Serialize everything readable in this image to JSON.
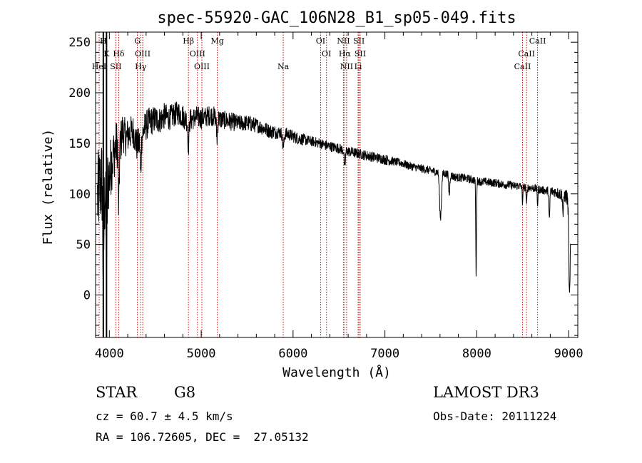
{
  "chart_data": {
    "type": "line",
    "title": "spec-55920-GAC_106N28_B1_sp05-049.fits",
    "xlabel": "Wavelength (Å)",
    "ylabel": "Flux (relative)",
    "xlim": [
      3850,
      9100
    ],
    "ylim": [
      -42,
      260
    ],
    "xticks": [
      4000,
      5000,
      6000,
      7000,
      8000,
      9000
    ],
    "yticks": [
      0,
      50,
      100,
      150,
      200,
      250
    ],
    "series": [
      {
        "name": "spectrum",
        "x": [
          3870,
          3890,
          3910,
          3930,
          3950,
          3970,
          3990,
          4020,
          4050,
          4080,
          4110,
          4140,
          4180,
          4220,
          4260,
          4300,
          4340,
          4380,
          4420,
          4460,
          4500,
          4550,
          4600,
          4650,
          4700,
          4750,
          4800,
          4850,
          4900,
          4950,
          5000,
          5050,
          5100,
          5150,
          5200,
          5250,
          5300,
          5350,
          5400,
          5450,
          5500,
          5550,
          5600,
          5650,
          5700,
          5750,
          5800,
          5850,
          5900,
          5950,
          6000,
          6050,
          6100,
          6150,
          6200,
          6250,
          6300,
          6350,
          6400,
          6450,
          6500,
          6550,
          6600,
          6650,
          6700,
          6750,
          6800,
          6850,
          6900,
          6950,
          7000,
          7050,
          7100,
          7150,
          7200,
          7250,
          7300,
          7350,
          7400,
          7450,
          7500,
          7550,
          7600,
          7650,
          7700,
          7750,
          7800,
          7850,
          7900,
          7950,
          8000,
          8050,
          8100,
          8150,
          8200,
          8250,
          8300,
          8350,
          8400,
          8450,
          8500,
          8550,
          8600,
          8650,
          8700,
          8750,
          8800,
          8850,
          8900,
          8950,
          9000,
          9020
        ],
        "y": [
          95,
          105,
          110,
          120,
          100,
          128,
          112,
          130,
          140,
          150,
          142,
          162,
          155,
          160,
          162,
          148,
          152,
          165,
          170,
          172,
          174,
          173,
          177,
          175,
          178,
          180,
          177,
          172,
          174,
          176,
          175,
          176,
          178,
          176,
          174,
          173,
          172,
          171,
          170,
          170,
          170,
          169,
          168,
          166,
          164,
          162,
          161,
          161,
          160,
          159,
          157,
          155,
          154,
          153,
          152,
          151,
          150,
          148,
          147,
          146,
          145,
          143,
          142,
          141,
          140,
          139,
          138,
          137,
          136,
          135,
          134,
          133,
          132,
          131,
          130,
          128,
          127,
          126,
          125,
          124,
          123,
          122,
          121,
          120,
          119,
          117,
          116,
          116,
          115,
          114,
          113,
          112,
          112,
          111,
          111,
          110,
          109,
          109,
          108,
          108,
          107,
          106,
          106,
          105,
          104,
          103,
          103,
          102,
          100,
          99,
          95,
          92
        ],
        "noise": [
          45,
          45,
          45,
          45,
          45,
          40,
          35,
          30,
          26,
          24,
          22,
          20,
          18,
          17,
          16,
          16,
          15,
          15,
          15,
          14,
          14,
          13,
          13,
          12,
          12,
          12,
          12,
          11,
          11,
          11,
          11,
          10,
          10,
          10,
          10,
          9,
          9,
          9,
          8,
          8,
          8,
          8,
          7,
          7,
          7,
          7,
          7,
          6,
          6,
          6,
          6,
          6,
          6,
          5,
          5,
          5,
          5,
          5,
          5,
          5,
          5,
          5,
          5,
          5,
          5,
          5,
          5,
          5,
          5,
          5,
          5,
          5,
          4,
          4,
          4,
          4,
          4,
          4,
          4,
          4,
          4,
          4,
          4,
          4,
          4,
          4,
          4,
          4,
          4,
          4,
          4,
          4,
          4,
          4,
          4,
          4,
          4,
          4,
          4,
          4,
          4,
          4,
          4,
          4,
          4,
          4,
          5,
          5,
          6,
          7,
          8,
          8
        ]
      }
    ],
    "dips": [
      {
        "x": 3934,
        "depth": 95,
        "width": 6
      },
      {
        "x": 3969,
        "depth": 100,
        "width": 6
      },
      {
        "x": 4102,
        "depth": 60,
        "width": 5
      },
      {
        "x": 4341,
        "depth": 35,
        "width": 5
      },
      {
        "x": 4861,
        "depth": 25,
        "width": 6
      },
      {
        "x": 5172,
        "depth": 20,
        "width": 6
      },
      {
        "x": 5893,
        "depth": 15,
        "width": 8
      },
      {
        "x": 6563,
        "depth": 18,
        "width": 6
      },
      {
        "x": 7605,
        "depth": 45,
        "width": 10
      },
      {
        "x": 7700,
        "depth": 20,
        "width": 6
      },
      {
        "x": 7993,
        "depth": 95,
        "width": 4
      },
      {
        "x": 8498,
        "depth": 15,
        "width": 4
      },
      {
        "x": 8542,
        "depth": 18,
        "width": 4
      },
      {
        "x": 8662,
        "depth": 15,
        "width": 4
      },
      {
        "x": 8790,
        "depth": 30,
        "width": 5
      },
      {
        "x": 8940,
        "depth": 20,
        "width": 5
      },
      {
        "x": 9010,
        "depth": 95,
        "width": 8
      }
    ],
    "solid_lines": [
      3934,
      3969
    ],
    "line_markers": [
      {
        "label": "H",
        "x": 3934,
        "tier": 0
      },
      {
        "label": "K",
        "x": 3969,
        "tier": 1
      },
      {
        "label": "HeI",
        "x": 3889,
        "tier": 2
      },
      {
        "label": "SII",
        "x": 4070,
        "tier": 2
      },
      {
        "label": "Hδ",
        "x": 4102,
        "tier": 1
      },
      {
        "label": "G",
        "x": 4305,
        "tier": 0
      },
      {
        "label": "OIII",
        "x": 4363,
        "tier": 1
      },
      {
        "label": "Hγ",
        "x": 4341,
        "tier": 2
      },
      {
        "label": "Hβ",
        "x": 4861,
        "tier": 0
      },
      {
        "label": "OIII",
        "x": 4959,
        "tier": 1
      },
      {
        "label": "OIII",
        "x": 5007,
        "tier": 2
      },
      {
        "label": "Mg",
        "x": 5175,
        "tier": 0
      },
      {
        "label": "Na",
        "x": 5893,
        "tier": 2
      },
      {
        "label": "OI",
        "x": 6300,
        "tier": 0
      },
      {
        "label": "OI",
        "x": 6364,
        "tier": 1
      },
      {
        "label": "NII",
        "x": 6548,
        "tier": 0
      },
      {
        "label": "NII",
        "x": 6583,
        "tier": 2
      },
      {
        "label": "Hα",
        "x": 6563,
        "tier": 1
      },
      {
        "label": "SII",
        "x": 6717,
        "tier": 0
      },
      {
        "label": "SII",
        "x": 6731,
        "tier": 1
      },
      {
        "label": "Li",
        "x": 6708,
        "tier": 2
      },
      {
        "label": "CaII",
        "x": 8662,
        "tier": 0
      },
      {
        "label": "CaII",
        "x": 8542,
        "tier": 1
      },
      {
        "label": "CaII",
        "x": 8498,
        "tier": 2
      }
    ],
    "colors": {
      "spectrum": "#000000",
      "marker": "#cc0000",
      "axis": "#000000"
    }
  },
  "info": {
    "class_label": "STAR",
    "subclass": "G8",
    "survey": "LAMOST DR3",
    "cz": "cz = 60.7 ± 4.5 km/s",
    "obs_date": "Obs-Date: 20111224",
    "coords": "RA = 106.72605, DEC =  27.05132"
  }
}
